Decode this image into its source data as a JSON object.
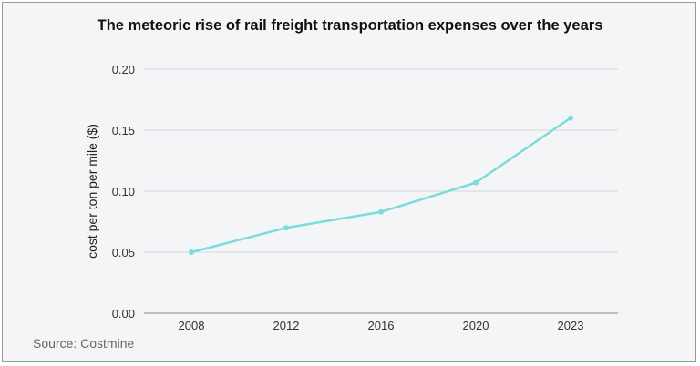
{
  "chart_data": {
    "type": "line",
    "title": "The meteoric rise of rail freight transportation expenses over the years",
    "xlabel": "",
    "ylabel": "cost per ton per mile ($)",
    "categories": [
      "2008",
      "2012",
      "2016",
      "2020",
      "2023"
    ],
    "values": [
      0.05,
      0.07,
      0.083,
      0.107,
      0.16
    ],
    "ylim": [
      0,
      0.2
    ],
    "yticks": [
      "0.00",
      "0.05",
      "0.10",
      "0.15",
      "0.20"
    ],
    "grid": true,
    "color": "#7adcdc",
    "source": "Source: Costmine"
  }
}
